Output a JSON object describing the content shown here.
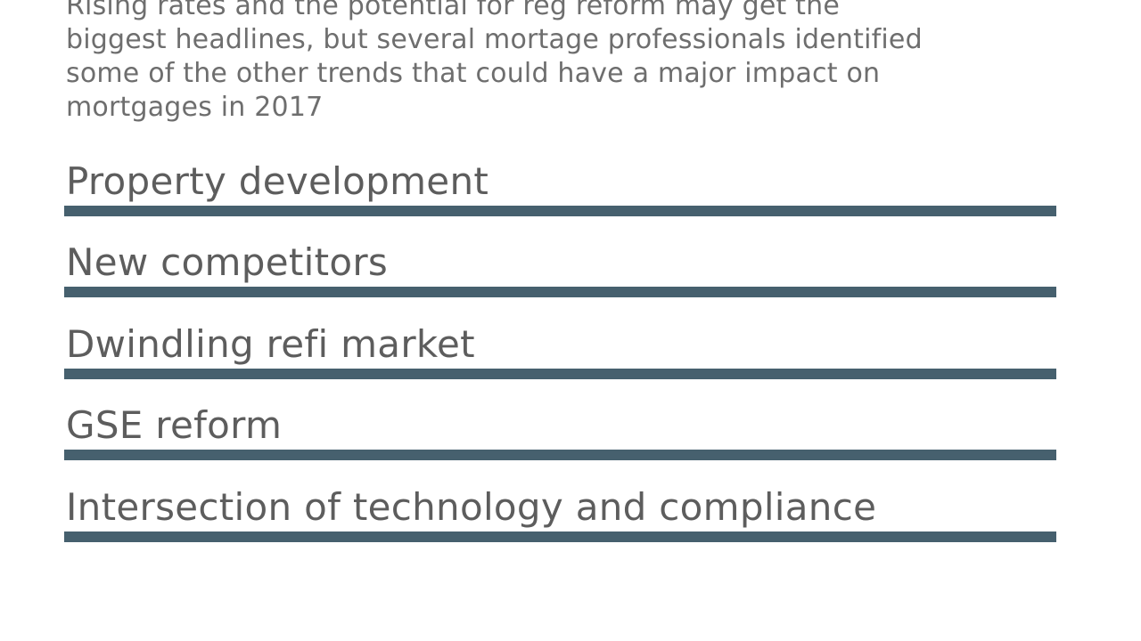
{
  "slide": {
    "intro": {
      "text": "Rising rates and the potential for reg reform may get the biggest headlines, but several mortage professionals identified some of the other trends that could have a major impact on mortgages in 2017",
      "lines": [
        "Rising rates and the potential for reg reform may get the",
        "biggest headlines, but several mortage professionals identified",
        "some of the other trends that could have a major impact on",
        "mortgages in 2017"
      ]
    },
    "items": [
      {
        "label": "Property development"
      },
      {
        "label": "New competitors"
      },
      {
        "label": "Dwindling refi market"
      },
      {
        "label": "GSE reform"
      },
      {
        "label": "Intersection of technology and compliance"
      }
    ],
    "colors": {
      "background": "#ffffff",
      "body_text": "#6e6e6e",
      "heading_text": "#5d5d5d",
      "rule": "#46606e"
    }
  }
}
